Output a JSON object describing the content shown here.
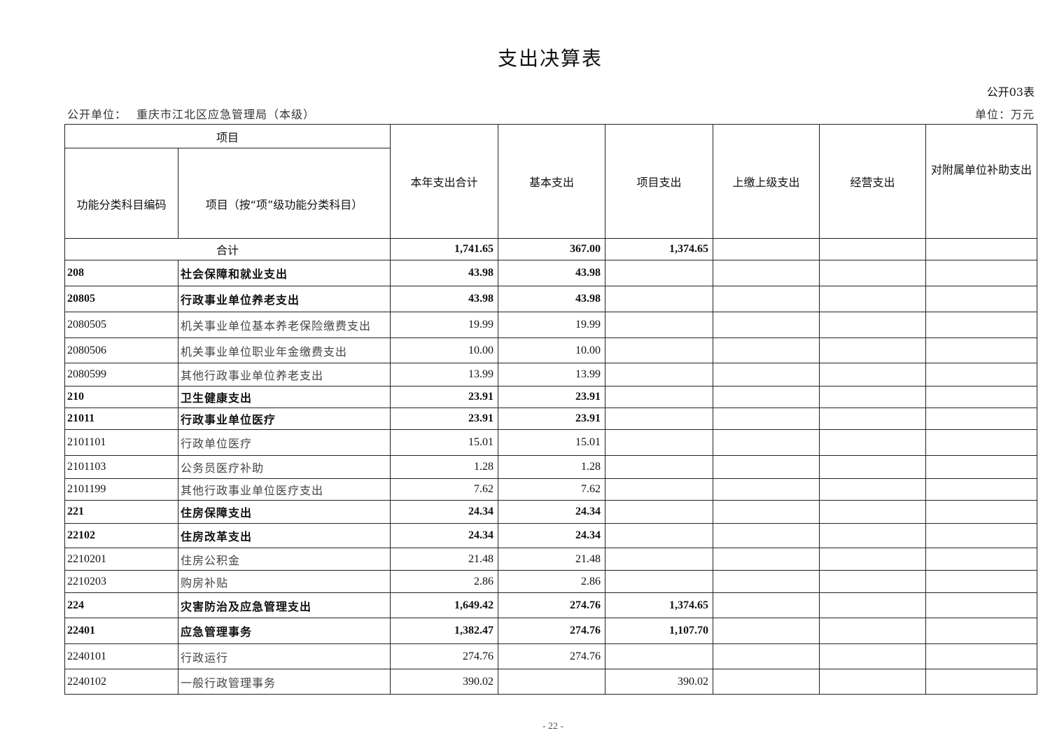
{
  "title": "支出决算表",
  "form_no": "公开03表",
  "org_label": "公开单位：",
  "org_name": "重庆市江北区应急管理局（本级）",
  "unit": "单位：万元",
  "headers": {
    "item": "项目",
    "code": "功能分类科目编码",
    "name": "项目（按“项”级功能分类科目）",
    "total": "本年支出合计",
    "basic": "基本支出",
    "project": "项目支出",
    "upper": "上缴上级支出",
    "business": "经营支出",
    "subsidy": "对附属单位补助支出"
  },
  "total_row": {
    "label": "合计",
    "total": "1,741.65",
    "basic": "367.00",
    "project": "1,374.65"
  },
  "rows": [
    {
      "code": "208",
      "name": "社会保障和就业支出",
      "total": "43.98",
      "basic": "43.98",
      "project": "",
      "bold": true
    },
    {
      "code": "20805",
      "name": "行政事业单位养老支出",
      "total": "43.98",
      "basic": "43.98",
      "project": "",
      "bold": true
    },
    {
      "code": "2080505",
      "name": "机关事业单位基本养老保险缴费支出",
      "total": "19.99",
      "basic": "19.99",
      "project": "",
      "bold": false
    },
    {
      "code": "2080506",
      "name": "机关事业单位职业年金缴费支出",
      "total": "10.00",
      "basic": "10.00",
      "project": "",
      "bold": false
    },
    {
      "code": "2080599",
      "name": "其他行政事业单位养老支出",
      "total": "13.99",
      "basic": "13.99",
      "project": "",
      "bold": false
    },
    {
      "code": "210",
      "name": "卫生健康支出",
      "total": "23.91",
      "basic": "23.91",
      "project": "",
      "bold": true
    },
    {
      "code": "21011",
      "name": "行政事业单位医疗",
      "total": "23.91",
      "basic": "23.91",
      "project": "",
      "bold": true
    },
    {
      "code": "2101101",
      "name": "行政单位医疗",
      "total": "15.01",
      "basic": "15.01",
      "project": "",
      "bold": false
    },
    {
      "code": "2101103",
      "name": "公务员医疗补助",
      "total": "1.28",
      "basic": "1.28",
      "project": "",
      "bold": false
    },
    {
      "code": "2101199",
      "name": "其他行政事业单位医疗支出",
      "total": "7.62",
      "basic": "7.62",
      "project": "",
      "bold": false
    },
    {
      "code": "221",
      "name": "住房保障支出",
      "total": "24.34",
      "basic": "24.34",
      "project": "",
      "bold": true
    },
    {
      "code": "22102",
      "name": "住房改革支出",
      "total": "24.34",
      "basic": "24.34",
      "project": "",
      "bold": true
    },
    {
      "code": "2210201",
      "name": "住房公积金",
      "total": "21.48",
      "basic": "21.48",
      "project": "",
      "bold": false
    },
    {
      "code": "2210203",
      "name": "购房补贴",
      "total": "2.86",
      "basic": "2.86",
      "project": "",
      "bold": false
    },
    {
      "code": "224",
      "name": "灾害防治及应急管理支出",
      "total": "1,649.42",
      "basic": "274.76",
      "project": "1,374.65",
      "bold": true
    },
    {
      "code": "22401",
      "name": "应急管理事务",
      "total": "1,382.47",
      "basic": "274.76",
      "project": "1,107.70",
      "bold": true
    },
    {
      "code": "2240101",
      "name": "行政运行",
      "total": "274.76",
      "basic": "274.76",
      "project": "",
      "bold": false
    },
    {
      "code": "2240102",
      "name": "一般行政管理事务",
      "total": "390.02",
      "basic": "",
      "project": "390.02",
      "bold": false
    }
  ],
  "page_number": "- 22 -"
}
